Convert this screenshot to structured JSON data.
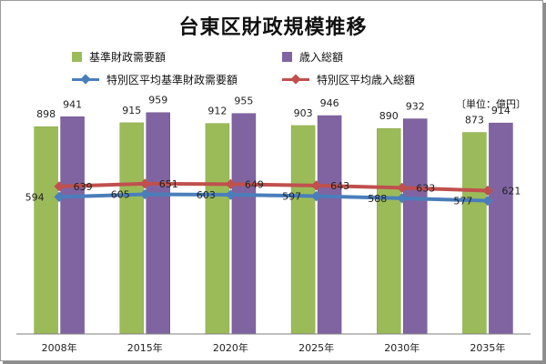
{
  "title": "台東区財政規模推移",
  "unit": "〔単位：億円〕",
  "colors": {
    "bar_need": "#9bbb59",
    "bar_rev": "#8064a2",
    "line_need": "#4a7ebb",
    "line_rev": "#c0504d"
  },
  "chart_data": {
    "type": "bar",
    "categories": [
      "2008年",
      "2015年",
      "2020年",
      "2025年",
      "2030年",
      "2035年"
    ],
    "ylim": [
      0,
      1250
    ],
    "grid": false,
    "legend_position": "top",
    "series": [
      {
        "name": "基準財政需要額",
        "kind": "bar",
        "values": [
          898,
          915,
          912,
          903,
          890,
          873
        ]
      },
      {
        "name": "歳入総額",
        "kind": "bar",
        "values": [
          941,
          959,
          955,
          946,
          932,
          914
        ]
      },
      {
        "name": "特別区平均基準財政需要額",
        "kind": "line",
        "values": [
          594,
          605,
          603,
          597,
          588,
          577
        ]
      },
      {
        "name": "特別区平均歳入総額",
        "kind": "line",
        "values": [
          639,
          651,
          649,
          643,
          633,
          621
        ]
      }
    ]
  }
}
